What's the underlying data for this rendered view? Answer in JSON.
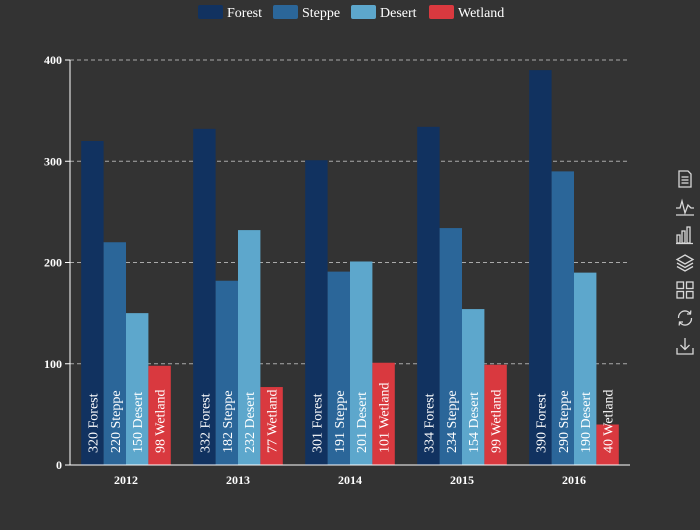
{
  "chart_data": {
    "type": "bar",
    "categories": [
      "2012",
      "2013",
      "2014",
      "2015",
      "2016"
    ],
    "series": [
      {
        "name": "Forest",
        "color": "#113260",
        "values": [
          320,
          332,
          301,
          334,
          390
        ]
      },
      {
        "name": "Steppe",
        "color": "#2b6699",
        "values": [
          220,
          182,
          191,
          234,
          290
        ]
      },
      {
        "name": "Desert",
        "color": "#5da7cc",
        "values": [
          150,
          232,
          201,
          154,
          190
        ]
      },
      {
        "name": "Wetland",
        "color": "#d9393f",
        "values": [
          98,
          77,
          101,
          99,
          40
        ]
      }
    ],
    "ylim": [
      0,
      400
    ],
    "yticks": [
      0,
      100,
      200,
      300,
      400
    ],
    "grid": true,
    "legend_position": "top-center",
    "bar_labels": "rotated-inside-bottom"
  },
  "toolbox": [
    {
      "name": "data-view-icon"
    },
    {
      "name": "line-chart-icon"
    },
    {
      "name": "bar-chart-icon"
    },
    {
      "name": "stack-icon"
    },
    {
      "name": "tiled-icon"
    },
    {
      "name": "restore-icon"
    },
    {
      "name": "save-image-icon"
    }
  ]
}
